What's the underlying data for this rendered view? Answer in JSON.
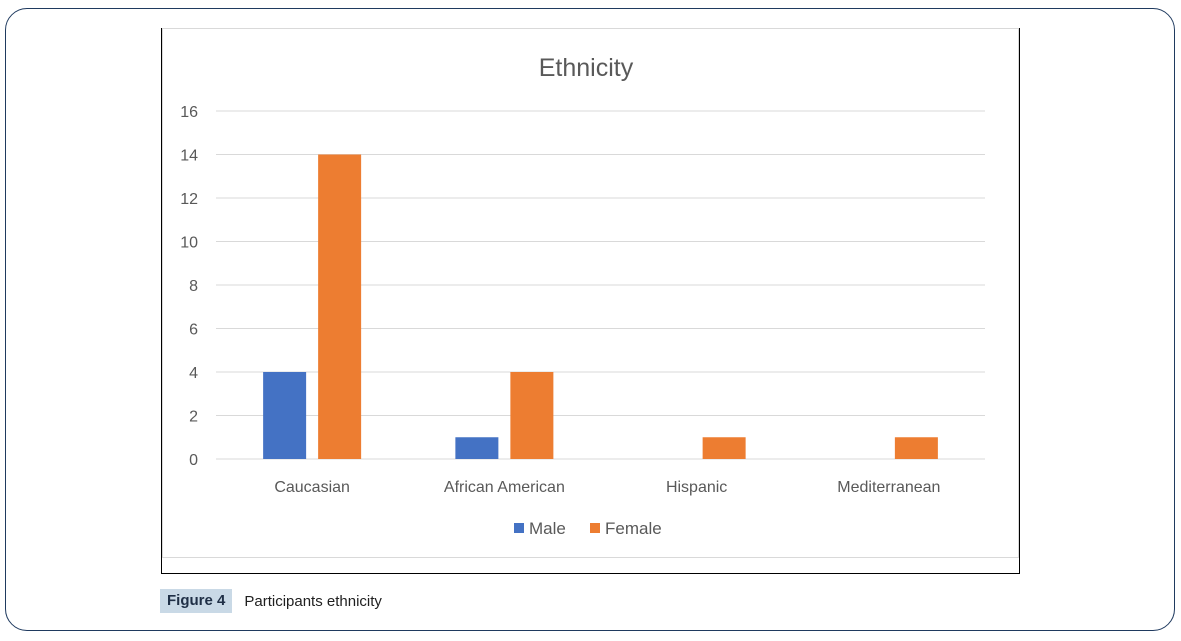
{
  "chart_data": {
    "type": "bar",
    "title": "Ethnicity",
    "categories": [
      "Caucasian",
      "African American",
      "Hispanic",
      "Mediterranean"
    ],
    "series": [
      {
        "name": "Male",
        "color": "#4472c4",
        "values": [
          4,
          1,
          0,
          0
        ]
      },
      {
        "name": "Female",
        "color": "#ed7d31",
        "values": [
          14,
          4,
          1,
          1
        ]
      }
    ],
    "ylim": [
      0,
      16
    ],
    "yticks": [
      "0",
      "2",
      "4",
      "6",
      "8",
      "10",
      "12",
      "14",
      "16"
    ],
    "xlabel": "",
    "ylabel": "",
    "grid": true,
    "legend_position": "bottom"
  },
  "caption": {
    "label": "Figure 4",
    "text": "Participants ethnicity"
  }
}
